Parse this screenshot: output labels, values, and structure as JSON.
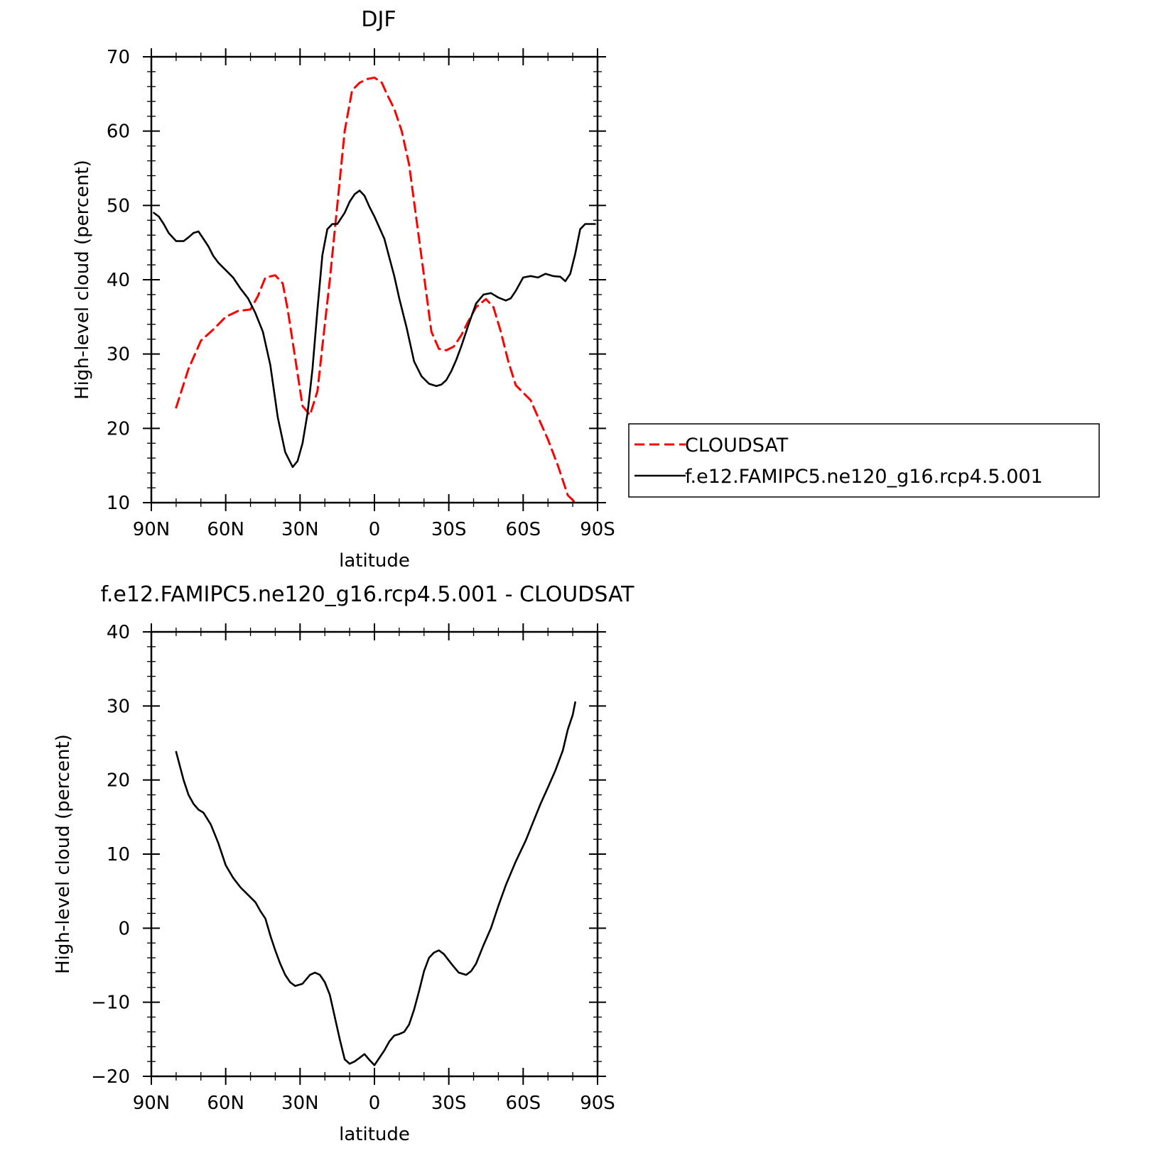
{
  "legend": {
    "entries": [
      {
        "name": "CLOUDSAT",
        "color": "#ff0000",
        "dash": "dashed"
      },
      {
        "name": "f.e12.FAMIPC5.ne120_g16.rcp4.5.001",
        "color": "#000000",
        "dash": "solid"
      }
    ]
  },
  "chart_data": [
    {
      "type": "line",
      "title": "DJF",
      "xlabel": "latitude",
      "ylabel": "High-level cloud (percent)",
      "xlim": [
        90,
        -90
      ],
      "ylim": [
        10,
        70
      ],
      "x_ticks": [
        90,
        60,
        30,
        0,
        -30,
        -60,
        -90
      ],
      "x_tick_labels": [
        "90N",
        "60N",
        "30N",
        "0",
        "30S",
        "60S",
        "90S"
      ],
      "y_ticks": [
        10,
        20,
        30,
        40,
        50,
        60,
        70
      ],
      "y_tick_labels": [
        "10",
        "20",
        "30",
        "40",
        "50",
        "60",
        "70"
      ],
      "legend_position": "right",
      "series": [
        {
          "name": "CLOUDSAT",
          "color": "#ff0000",
          "dash": "dashed",
          "x": [
            80,
            75,
            70,
            65,
            60,
            55,
            50,
            47,
            44,
            40,
            37,
            35,
            32,
            29,
            26,
            23,
            21,
            18,
            15,
            12,
            9,
            6,
            3,
            0,
            -3,
            -5,
            -8,
            -11,
            -14,
            -17,
            -20,
            -23,
            -26,
            -29,
            -32,
            -35,
            -38,
            -41,
            -45,
            -48,
            -51,
            -54,
            -57,
            -60,
            -63,
            -66,
            -70,
            -74,
            -78,
            -81
          ],
          "values": [
            22.8,
            28,
            31.8,
            33.3,
            35,
            35.8,
            36,
            37.8,
            40.3,
            40.6,
            39.5,
            36,
            29.5,
            23,
            21.8,
            25,
            31,
            40,
            50,
            60,
            65.5,
            66.5,
            67,
            67.2,
            66.5,
            65,
            63,
            60,
            55.5,
            48,
            40.5,
            33,
            30.7,
            30.5,
            31,
            32.5,
            34.5,
            36.3,
            37.4,
            36.3,
            33,
            29,
            25.8,
            24.8,
            23.8,
            21.5,
            18.5,
            15,
            11,
            10
          ]
        },
        {
          "name": "f.e12.FAMIPC5.ne120_g16.rcp4.5.001",
          "color": "#000000",
          "dash": "solid",
          "x": [
            89,
            87,
            85,
            83,
            80,
            77,
            75,
            73,
            71,
            69,
            67,
            65,
            63,
            60,
            57,
            54,
            51,
            48,
            45,
            42,
            39,
            36,
            33,
            31,
            29,
            27,
            25,
            23,
            21,
            19,
            17,
            15,
            12,
            10,
            8,
            6,
            4,
            2,
            0,
            -2,
            -4,
            -6,
            -8,
            -10,
            -13,
            -16,
            -19,
            -22,
            -25,
            -27,
            -29,
            -31,
            -33,
            -35,
            -38,
            -41,
            -44,
            -47,
            -50,
            -53,
            -55,
            -57,
            -60,
            -63,
            -66,
            -69,
            -72,
            -75,
            -77,
            -79,
            -81,
            -83,
            -85,
            -87,
            -89
          ],
          "values": [
            49,
            48.5,
            47.5,
            46.3,
            45.2,
            45.2,
            45.7,
            46.3,
            46.5,
            45.5,
            44.5,
            43.2,
            42.3,
            41.3,
            40.3,
            38.8,
            37.5,
            35.5,
            33,
            28.5,
            21.5,
            16.8,
            14.8,
            15.6,
            18,
            22,
            28,
            36,
            43.3,
            46.8,
            47.5,
            47.5,
            49,
            50.5,
            51.5,
            52,
            51.3,
            49.8,
            48.5,
            47,
            45.5,
            43,
            40.5,
            37.5,
            33.5,
            29,
            27,
            26,
            25.7,
            25.9,
            26.5,
            27.7,
            29.2,
            31,
            34,
            36.8,
            38,
            38.2,
            37.6,
            37.2,
            37.5,
            38.5,
            40.3,
            40.5,
            40.3,
            40.8,
            40.5,
            40.4,
            39.8,
            40.8,
            43.5,
            46.8,
            47.5,
            47.5,
            47.5
          ]
        }
      ]
    },
    {
      "type": "line",
      "title": "f.e12.FAMIPC5.ne120_g16.rcp4.5.001 - CLOUDSAT",
      "xlabel": "latitude",
      "ylabel": "High-level cloud (percent)",
      "xlim": [
        90,
        -90
      ],
      "ylim": [
        -20,
        40
      ],
      "x_ticks": [
        90,
        60,
        30,
        0,
        -30,
        -60,
        -90
      ],
      "x_tick_labels": [
        "90N",
        "60N",
        "30N",
        "0",
        "30S",
        "60S",
        "90S"
      ],
      "y_ticks": [
        -20,
        -10,
        0,
        10,
        20,
        30,
        40
      ],
      "y_tick_labels": [
        "−20",
        "−10",
        "0",
        "10",
        "20",
        "30",
        "40"
      ],
      "series": [
        {
          "name": "",
          "color": "#000000",
          "dash": "solid",
          "x": [
            80,
            77,
            75,
            73,
            71,
            69,
            66,
            63,
            60,
            57,
            54,
            51,
            48,
            46,
            44,
            42,
            40,
            38,
            36,
            34,
            32,
            29,
            26,
            24,
            22,
            20,
            18,
            16,
            14,
            12,
            10,
            8,
            6,
            4,
            2,
            0,
            -2,
            -4,
            -6,
            -8,
            -10,
            -12,
            -14,
            -16,
            -18,
            -20,
            -22,
            -24,
            -26,
            -28,
            -31,
            -34,
            -37,
            -39,
            -41,
            -44,
            -47,
            -50,
            -53,
            -57,
            -61,
            -64,
            -67,
            -70,
            -73,
            -76,
            -78,
            -80,
            -81
          ],
          "values": [
            23.8,
            20,
            18,
            16.8,
            16,
            15.6,
            14,
            11.5,
            8.5,
            6.8,
            5.5,
            4.5,
            3.5,
            2.3,
            1.3,
            -1,
            -3,
            -4.8,
            -6.3,
            -7.3,
            -7.8,
            -7.5,
            -6.3,
            -6,
            -6.3,
            -7.3,
            -9,
            -12,
            -15,
            -17.7,
            -18.3,
            -18,
            -17.5,
            -17,
            -17.8,
            -18.5,
            -17.5,
            -16.5,
            -15.3,
            -14.5,
            -14.3,
            -14,
            -13,
            -11,
            -8.5,
            -5.8,
            -4,
            -3.3,
            -3,
            -3.5,
            -4.8,
            -6,
            -6.3,
            -5.8,
            -4.8,
            -2.3,
            0,
            3,
            5.8,
            9,
            11.8,
            14.3,
            16.8,
            19,
            21.3,
            24,
            26.8,
            28.8,
            30.5
          ]
        }
      ]
    }
  ]
}
